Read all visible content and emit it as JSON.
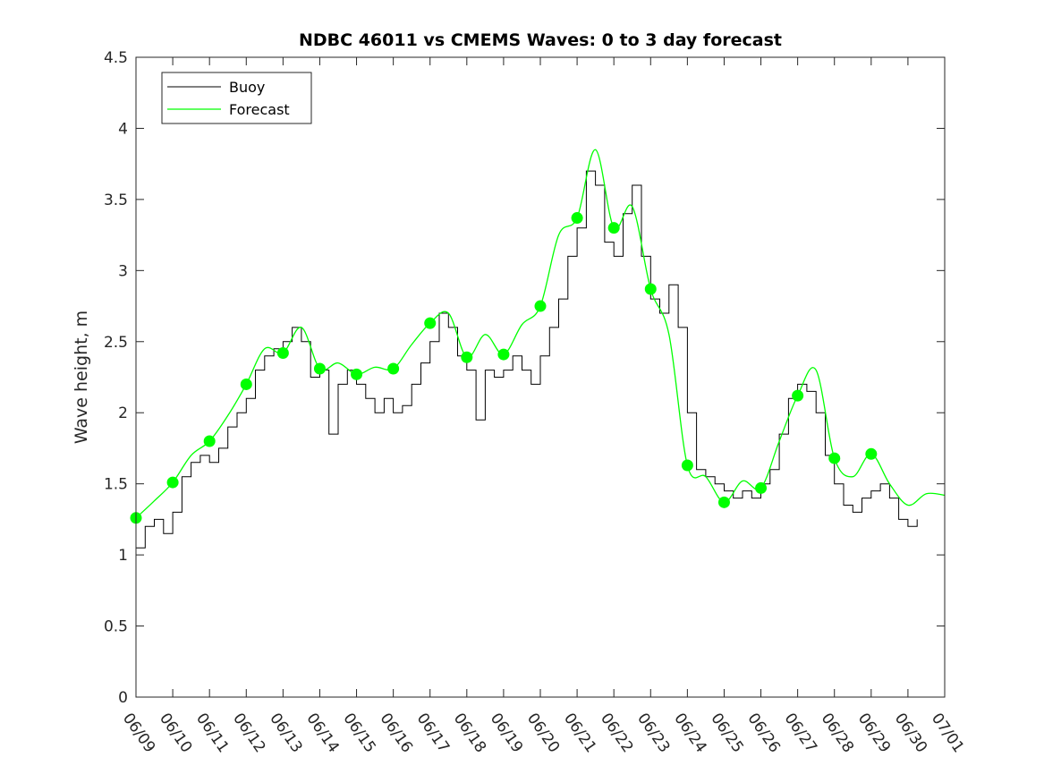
{
  "chart_data": {
    "type": "line",
    "title": "NDBC 46011 vs CMEMS Waves: 0 to 3 day forecast",
    "xlabel": "",
    "ylabel": "Wave height, m",
    "xlim": [
      "06/09",
      "07/01"
    ],
    "ylim": [
      0,
      4.5
    ],
    "x_tick_labels": [
      "06/09",
      "06/10",
      "06/11",
      "06/12",
      "06/13",
      "06/14",
      "06/15",
      "06/16",
      "06/17",
      "06/18",
      "06/19",
      "06/20",
      "06/21",
      "06/22",
      "06/23",
      "06/24",
      "06/25",
      "06/26",
      "06/27",
      "06/28",
      "06/29",
      "06/30",
      "07/01"
    ],
    "y_ticks": [
      0,
      0.5,
      1,
      1.5,
      2,
      2.5,
      3,
      3.5,
      4,
      4.5
    ],
    "y_tick_labels": [
      "0",
      "0.5",
      "1",
      "1.5",
      "2",
      "2.5",
      "3",
      "3.5",
      "4",
      "4.5"
    ],
    "grid": false,
    "legend_position": "top-left",
    "legend": [
      "Buoy",
      "Forecast"
    ],
    "colors": {
      "buoy": "#000000",
      "forecast": "#00ff00"
    },
    "series": [
      {
        "name": "Buoy",
        "x": [
          "06/09 00:00",
          "06/09 06:00",
          "06/09 12:00",
          "06/09 18:00",
          "06/10 00:00",
          "06/10 06:00",
          "06/10 12:00",
          "06/10 18:00",
          "06/11 00:00",
          "06/11 06:00",
          "06/11 12:00",
          "06/11 18:00",
          "06/12 00:00",
          "06/12 06:00",
          "06/12 12:00",
          "06/12 18:00",
          "06/13 00:00",
          "06/13 06:00",
          "06/13 12:00",
          "06/13 18:00",
          "06/14 00:00",
          "06/14 06:00",
          "06/14 12:00",
          "06/14 18:00",
          "06/15 00:00",
          "06/15 06:00",
          "06/15 12:00",
          "06/15 18:00",
          "06/16 00:00",
          "06/16 06:00",
          "06/16 12:00",
          "06/16 18:00",
          "06/17 00:00",
          "06/17 06:00",
          "06/17 12:00",
          "06/17 18:00",
          "06/18 00:00",
          "06/18 06:00",
          "06/18 12:00",
          "06/18 18:00",
          "06/19 00:00",
          "06/19 06:00",
          "06/19 12:00",
          "06/19 18:00",
          "06/20 00:00",
          "06/20 06:00",
          "06/20 12:00",
          "06/20 18:00",
          "06/21 00:00",
          "06/21 06:00",
          "06/21 12:00",
          "06/21 18:00",
          "06/22 00:00",
          "06/22 06:00",
          "06/22 12:00",
          "06/22 18:00",
          "06/23 00:00",
          "06/23 06:00",
          "06/23 12:00",
          "06/23 18:00",
          "06/24 00:00",
          "06/24 06:00",
          "06/24 12:00",
          "06/24 18:00",
          "06/25 00:00",
          "06/25 06:00",
          "06/25 12:00",
          "06/25 18:00",
          "06/26 00:00",
          "06/26 06:00",
          "06/26 12:00",
          "06/26 18:00",
          "06/27 00:00",
          "06/27 06:00",
          "06/27 12:00",
          "06/27 18:00",
          "06/28 00:00",
          "06/28 06:00",
          "06/28 12:00",
          "06/28 18:00",
          "06/29 00:00",
          "06/29 06:00",
          "06/29 12:00",
          "06/29 18:00",
          "06/30 00:00",
          "06/30 06:00"
        ],
        "y": [
          1.05,
          1.2,
          1.25,
          1.15,
          1.3,
          1.55,
          1.65,
          1.7,
          1.65,
          1.75,
          1.9,
          2.0,
          2.1,
          2.3,
          2.4,
          2.45,
          2.5,
          2.6,
          2.5,
          2.25,
          2.3,
          1.85,
          2.2,
          2.3,
          2.2,
          2.1,
          2.0,
          2.1,
          2.0,
          2.05,
          2.2,
          2.35,
          2.5,
          2.7,
          2.6,
          2.4,
          2.3,
          1.95,
          2.3,
          2.25,
          2.3,
          2.4,
          2.3,
          2.2,
          2.4,
          2.6,
          2.8,
          3.1,
          3.3,
          3.7,
          3.6,
          3.2,
          3.1,
          3.4,
          3.6,
          3.1,
          2.8,
          2.7,
          2.9,
          2.6,
          2.0,
          1.6,
          1.55,
          1.5,
          1.45,
          1.4,
          1.45,
          1.4,
          1.5,
          1.6,
          1.85,
          2.1,
          2.2,
          2.15,
          2.0,
          1.7,
          1.5,
          1.35,
          1.3,
          1.4,
          1.45,
          1.5,
          1.4,
          1.25,
          1.2,
          1.25
        ]
      },
      {
        "name": "Forecast",
        "x": [
          "06/09 00:00",
          "06/09 12:00",
          "06/10 00:00",
          "06/10 12:00",
          "06/11 00:00",
          "06/11 12:00",
          "06/12 00:00",
          "06/12 12:00",
          "06/13 00:00",
          "06/13 12:00",
          "06/14 00:00",
          "06/14 12:00",
          "06/15 00:00",
          "06/15 12:00",
          "06/16 00:00",
          "06/16 12:00",
          "06/17 00:00",
          "06/17 12:00",
          "06/18 00:00",
          "06/18 12:00",
          "06/19 00:00",
          "06/19 12:00",
          "06/20 00:00",
          "06/20 12:00",
          "06/21 00:00",
          "06/21 12:00",
          "06/22 00:00",
          "06/22 12:00",
          "06/23 00:00",
          "06/23 12:00",
          "06/24 00:00",
          "06/24 12:00",
          "06/25 00:00",
          "06/25 12:00",
          "06/26 00:00",
          "06/26 12:00",
          "06/27 00:00",
          "06/27 12:00",
          "06/28 00:00",
          "06/28 12:00",
          "06/29 00:00",
          "06/29 12:00",
          "06/30 00:00",
          "06/30 12:00",
          "07/01 00:00"
        ],
        "y": [
          1.26,
          1.38,
          1.51,
          1.7,
          1.8,
          1.98,
          2.2,
          2.45,
          2.42,
          2.6,
          2.31,
          2.35,
          2.27,
          2.32,
          2.31,
          2.48,
          2.63,
          2.7,
          2.39,
          2.55,
          2.41,
          2.62,
          2.75,
          3.25,
          3.37,
          3.85,
          3.3,
          3.45,
          2.87,
          2.55,
          1.63,
          1.55,
          1.37,
          1.52,
          1.47,
          1.8,
          2.12,
          2.3,
          1.68,
          1.55,
          1.71,
          1.5,
          1.35,
          1.43,
          1.42
        ]
      }
    ],
    "forecast_markers": {
      "x": [
        "06/09",
        "06/10",
        "06/11",
        "06/12",
        "06/13",
        "06/14",
        "06/15",
        "06/16",
        "06/17",
        "06/18",
        "06/19",
        "06/20",
        "06/21",
        "06/22",
        "06/23",
        "06/24",
        "06/25",
        "06/26",
        "06/27",
        "06/28",
        "06/29"
      ],
      "y": [
        1.26,
        1.51,
        1.8,
        2.2,
        2.42,
        2.31,
        2.27,
        2.31,
        2.63,
        2.39,
        2.41,
        2.75,
        3.37,
        3.3,
        2.87,
        1.63,
        1.37,
        1.47,
        2.12,
        1.68,
        1.71
      ]
    }
  }
}
